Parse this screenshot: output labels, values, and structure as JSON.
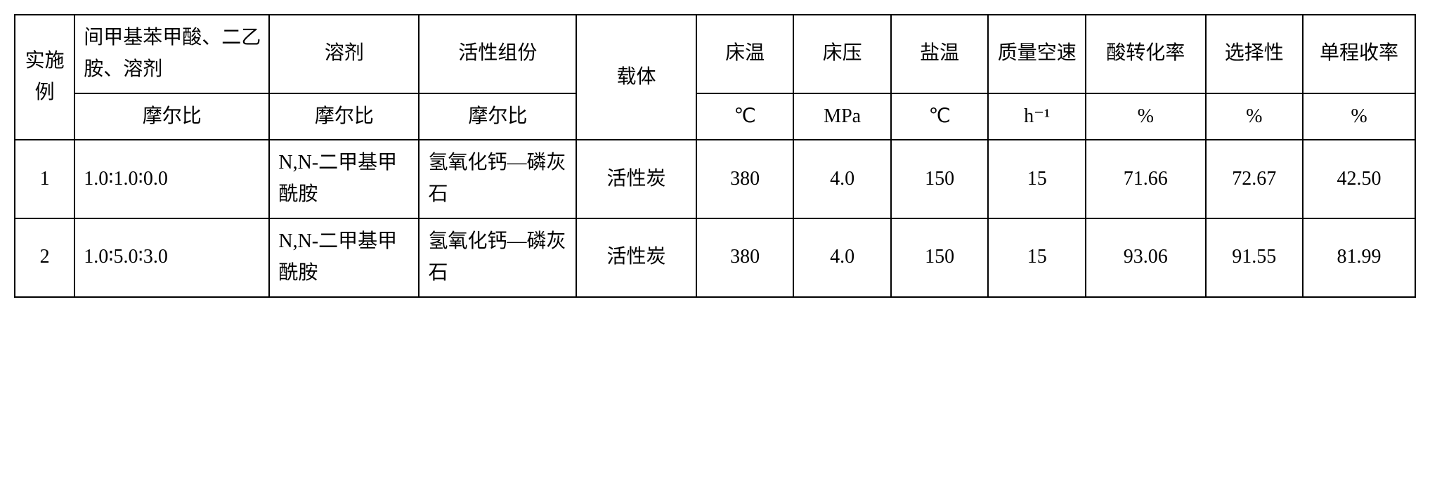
{
  "header": {
    "row1": {
      "example": "实施例",
      "ratio_desc": "间甲基苯甲酸、二乙胺、溶剂",
      "solvent": "溶剂",
      "active_component": "活性组份",
      "carrier": "载体",
      "bed_temp": "床温",
      "bed_pressure": "床压",
      "salt_temp": "盐温",
      "mass_space_velocity": "质量空速",
      "acid_conversion": "酸转化率",
      "selectivity": "选择性",
      "single_pass_yield": "单程收率"
    },
    "row2": {
      "mole_ratio1": "摩尔比",
      "mole_ratio2": "摩尔比",
      "mole_ratio3": "摩尔比",
      "bed_temp_unit": "℃",
      "bed_pressure_unit": "MPa",
      "salt_temp_unit": "℃",
      "mass_space_velocity_unit": "h⁻¹",
      "acid_conversion_unit": "%",
      "selectivity_unit": "%",
      "single_pass_yield_unit": "%"
    }
  },
  "rows": [
    {
      "example": "1",
      "ratio": "1.0∶1.0∶0.0",
      "solvent": "N,N-二甲基甲酰胺",
      "active_component": "氢氧化钙—磷灰石",
      "carrier": "活性炭",
      "bed_temp": "380",
      "bed_pressure": "4.0",
      "salt_temp": "150",
      "mass_space_velocity": "15",
      "acid_conversion": "71.66",
      "selectivity": "72.67",
      "single_pass_yield": "42.50"
    },
    {
      "example": "2",
      "ratio": "1.0∶5.0∶3.0",
      "solvent": "N,N-二甲基甲酰胺",
      "active_component": "氢氧化钙—磷灰石",
      "carrier": "活性炭",
      "bed_temp": "380",
      "bed_pressure": "4.0",
      "salt_temp": "150",
      "mass_space_velocity": "15",
      "acid_conversion": "93.06",
      "selectivity": "91.55",
      "single_pass_yield": "81.99"
    }
  ]
}
